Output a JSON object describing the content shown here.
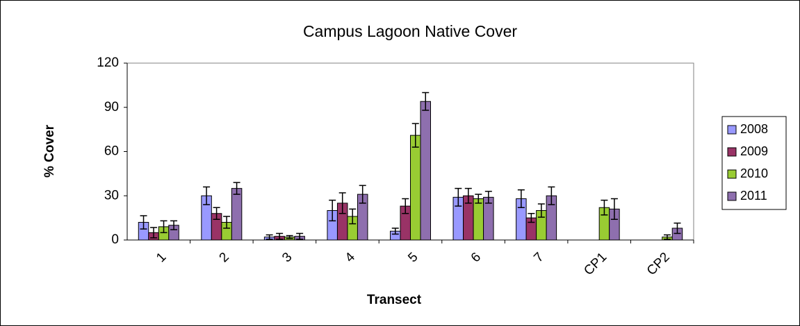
{
  "chart_data": {
    "type": "bar",
    "title": "Campus Lagoon Native Cover",
    "x_label": "Transect",
    "y_label": "% Cover",
    "categories": [
      "1",
      "2",
      "3",
      "4",
      "5",
      "6",
      "7",
      "CP1",
      "CP2"
    ],
    "series": [
      {
        "name": "2008",
        "color": "#9999ff",
        "values": [
          12,
          30,
          2,
          20,
          6,
          29,
          28,
          null,
          null
        ],
        "errors": [
          4.5,
          6,
          1.5,
          7,
          2,
          6,
          6,
          null,
          null
        ]
      },
      {
        "name": "2009",
        "color": "#993366",
        "values": [
          5,
          18,
          2.5,
          25,
          23,
          30,
          15,
          null,
          null
        ],
        "errors": [
          3.5,
          4,
          2,
          7,
          5,
          5,
          3,
          null,
          null
        ]
      },
      {
        "name": "2010",
        "color": "#99cc33",
        "values": [
          9,
          12,
          2,
          16,
          71,
          28,
          20,
          22,
          2
        ],
        "errors": [
          4,
          4,
          1,
          5,
          8,
          3,
          4.5,
          5,
          1.5
        ]
      },
      {
        "name": "2011",
        "color": "#8e6fae",
        "values": [
          10,
          35,
          2.5,
          31,
          94,
          29,
          30,
          21,
          8
        ],
        "errors": [
          3,
          4,
          2,
          6,
          6,
          4,
          6,
          7,
          3.5
        ]
      }
    ],
    "ylim": [
      0,
      120
    ],
    "yticks": [
      0,
      30,
      60,
      90,
      120
    ],
    "grid": false,
    "legend": "right"
  }
}
